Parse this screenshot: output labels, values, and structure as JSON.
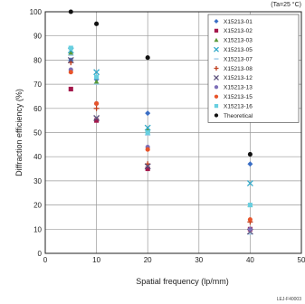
{
  "chart_data": {
    "type": "scatter",
    "condition_note": "(Ta=25 °C)",
    "figure_code": "LEJ-F40003",
    "xlabel": "Spatial frequency (lp/mm)",
    "ylabel": "Diffraction efficiency (%)",
    "xlim": [
      0,
      50
    ],
    "ylim": [
      0,
      100
    ],
    "x_ticks": [
      0,
      10,
      20,
      30,
      40,
      50
    ],
    "y_ticks": [
      0,
      10,
      20,
      30,
      40,
      50,
      60,
      70,
      80,
      90,
      100
    ],
    "grid": true,
    "legend_position": "top-right",
    "series": [
      {
        "name": "X15213-01",
        "color": "#3a6ec5",
        "marker": "diamond",
        "points": [
          [
            5,
            80
          ],
          [
            10,
            72
          ],
          [
            20,
            58
          ],
          [
            40,
            37
          ]
        ]
      },
      {
        "name": "X15213-02",
        "color": "#a4184c",
        "marker": "square",
        "points": [
          [
            5,
            68
          ],
          [
            10,
            55
          ],
          [
            20,
            35
          ],
          [
            40,
            10
          ]
        ]
      },
      {
        "name": "X15213-03",
        "color": "#5a9a3a",
        "marker": "triangle",
        "points": [
          [
            5,
            83
          ],
          [
            10,
            71
          ],
          [
            20,
            51
          ],
          [
            40,
            20
          ]
        ]
      },
      {
        "name": "X15213-05",
        "color": "#2fa8c8",
        "marker": "x",
        "points": [
          [
            5,
            84
          ],
          [
            10,
            75
          ],
          [
            20,
            52
          ],
          [
            40,
            29
          ]
        ]
      },
      {
        "name": "X15213-07",
        "color": "#9bc9e8",
        "marker": "dash",
        "points": [
          [
            5,
            82
          ],
          [
            10,
            70
          ],
          [
            20,
            49
          ],
          [
            40,
            8
          ]
        ]
      },
      {
        "name": "X15213-08",
        "color": "#c04020",
        "marker": "plus",
        "points": [
          [
            5,
            79
          ],
          [
            10,
            60
          ],
          [
            20,
            37
          ],
          [
            40,
            13
          ]
        ]
      },
      {
        "name": "X15213-12",
        "color": "#5a4f7a",
        "marker": "x",
        "points": [
          [
            5,
            80
          ],
          [
            10,
            56
          ],
          [
            20,
            36
          ],
          [
            40,
            9
          ]
        ]
      },
      {
        "name": "X15213-13",
        "color": "#7d6fb8",
        "marker": "circle",
        "points": [
          [
            5,
            76
          ],
          [
            10,
            62
          ],
          [
            20,
            44
          ],
          [
            40,
            10
          ]
        ]
      },
      {
        "name": "X15213-15",
        "color": "#e8542a",
        "marker": "circle",
        "points": [
          [
            5,
            75
          ],
          [
            10,
            62
          ],
          [
            20,
            43
          ],
          [
            40,
            14
          ]
        ]
      },
      {
        "name": "X15213-16",
        "color": "#68cfe0",
        "marker": "square",
        "points": [
          [
            5,
            85
          ],
          [
            10,
            73
          ],
          [
            20,
            50
          ],
          [
            40,
            20
          ]
        ]
      },
      {
        "name": "Theoretical",
        "color": "#111111",
        "marker": "circle",
        "points": [
          [
            5,
            100
          ],
          [
            10,
            95
          ],
          [
            20,
            81
          ],
          [
            40,
            41
          ]
        ]
      }
    ]
  }
}
